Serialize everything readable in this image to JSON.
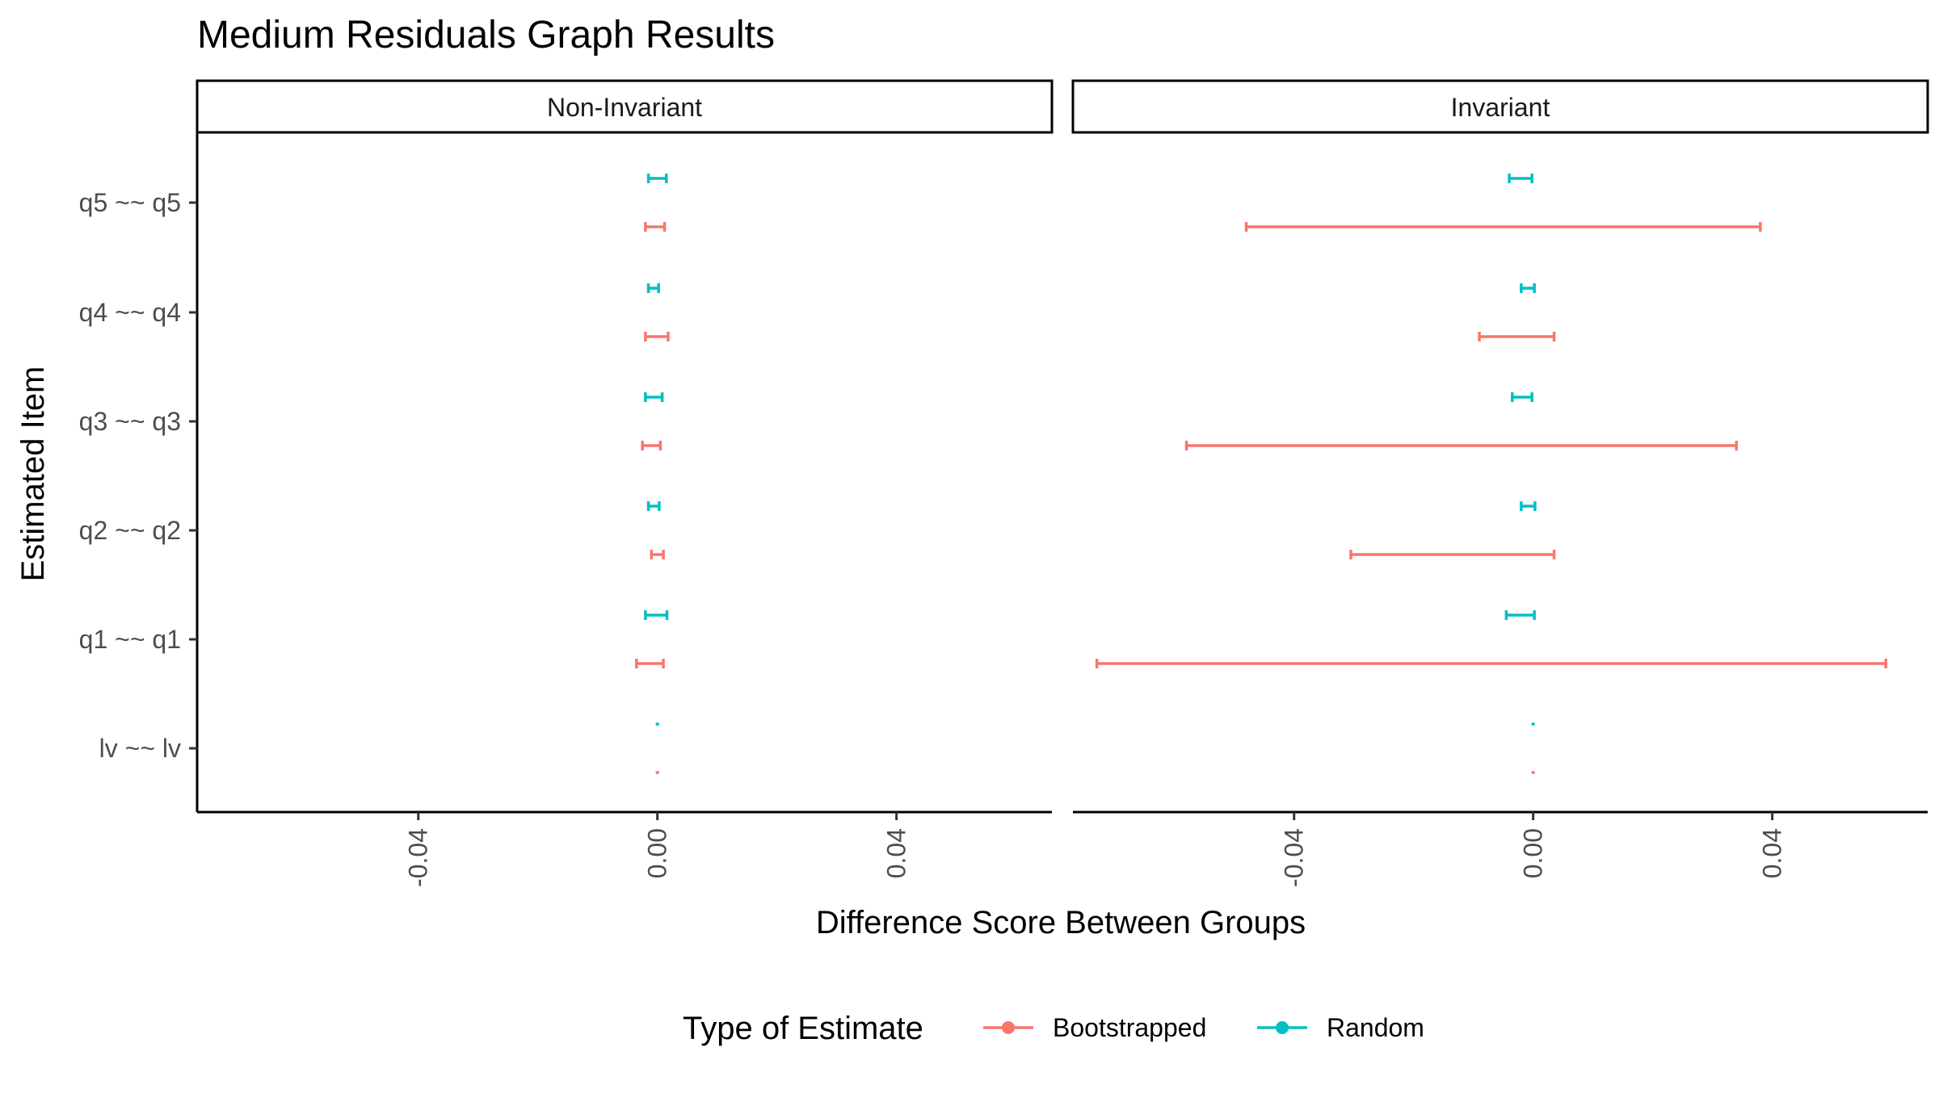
{
  "chart_data": {
    "type": "errorbar",
    "title": "Medium Residuals Graph Results",
    "xlabel": "Difference Score Between Groups",
    "ylabel": "Estimated Item",
    "xlim": [
      -0.077,
      0.066
    ],
    "x_ticks": [
      -0.04,
      0.0,
      0.04
    ],
    "x_tick_labels": [
      "-0.04",
      "0.00",
      "0.04"
    ],
    "categories": [
      "q5 ~~ q5",
      "q4 ~~ q4",
      "q3 ~~ q3",
      "q2 ~~ q2",
      "q1 ~~ q1",
      "lv ~~ lv"
    ],
    "grid": false,
    "legend": {
      "title": "Type of Estimate",
      "position": "bottom",
      "entries": [
        {
          "name": "Bootstrapped",
          "color": "#F8766D"
        },
        {
          "name": "Random",
          "color": "#00BFC4"
        }
      ]
    },
    "panels": [
      {
        "name": "Non-Invariant",
        "series": [
          {
            "name": "Random",
            "color": "#00BFC4",
            "intervals": [
              [
                -0.0015,
                0.0015
              ],
              [
                -0.0015,
                0.0002
              ],
              [
                -0.002,
                0.0008
              ],
              [
                -0.0015,
                0.0003
              ],
              [
                -0.002,
                0.0016
              ],
              [
                0.0,
                0.0
              ]
            ]
          },
          {
            "name": "Bootstrapped",
            "color": "#F8766D",
            "intervals": [
              [
                -0.002,
                0.0012
              ],
              [
                -0.002,
                0.0018
              ],
              [
                -0.0025,
                0.0005
              ],
              [
                -0.001,
                0.001
              ],
              [
                -0.0035,
                0.001
              ],
              [
                0.0,
                0.0
              ]
            ]
          }
        ]
      },
      {
        "name": "Invariant",
        "series": [
          {
            "name": "Random",
            "color": "#00BFC4",
            "intervals": [
              [
                -0.004,
                -0.0002
              ],
              [
                -0.002,
                0.0002
              ],
              [
                -0.0035,
                -0.0002
              ],
              [
                -0.002,
                0.0003
              ],
              [
                -0.0045,
                0.0002
              ],
              [
                0.0,
                0.0
              ]
            ]
          },
          {
            "name": "Bootstrapped",
            "color": "#F8766D",
            "intervals": [
              [
                -0.048,
                0.038
              ],
              [
                -0.009,
                0.0035
              ],
              [
                -0.058,
                0.034
              ],
              [
                -0.0305,
                0.0035
              ],
              [
                -0.073,
                0.059
              ],
              [
                0.0,
                0.0
              ]
            ]
          }
        ]
      }
    ]
  }
}
